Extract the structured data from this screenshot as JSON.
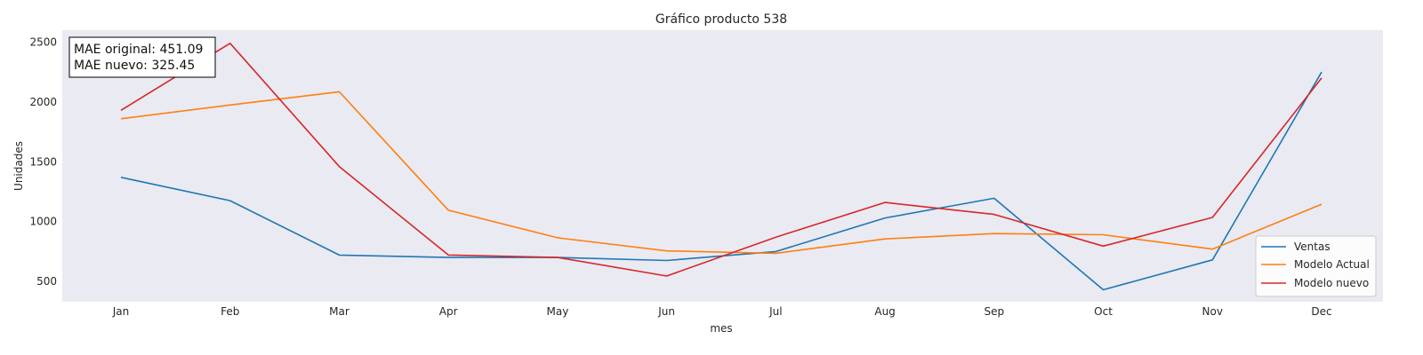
{
  "chart_data": {
    "type": "line",
    "title": "Gráfico producto 538",
    "xlabel": "mes",
    "ylabel": "Unidades",
    "categories": [
      "Jan",
      "Feb",
      "Mar",
      "Apr",
      "May",
      "Jun",
      "Jul",
      "Aug",
      "Sep",
      "Oct",
      "Nov",
      "Dec"
    ],
    "yticks": [
      500,
      1000,
      1500,
      2000,
      2500
    ],
    "ylim": [
      330,
      2600
    ],
    "grid": false,
    "background_color": "#EAEAF2",
    "legend_position": "lower right",
    "series": [
      {
        "name": "Ventas",
        "color": "#1F77B4",
        "values": [
          1370,
          1175,
          720,
          700,
          700,
          675,
          750,
          1030,
          1195,
          430,
          680,
          2250
        ]
      },
      {
        "name": "Modelo Actual",
        "color": "#FF7F0E",
        "values": [
          1860,
          1975,
          2085,
          1095,
          865,
          755,
          735,
          855,
          900,
          890,
          770,
          1145
        ]
      },
      {
        "name": "Modelo nuevo",
        "color": "#D62728",
        "values": [
          1930,
          2490,
          1460,
          720,
          700,
          545,
          870,
          1160,
          1060,
          795,
          1035,
          2200
        ]
      }
    ],
    "annotation": {
      "line1": "MAE original: 451.09",
      "line2": "MAE nuevo: 325.45"
    }
  }
}
